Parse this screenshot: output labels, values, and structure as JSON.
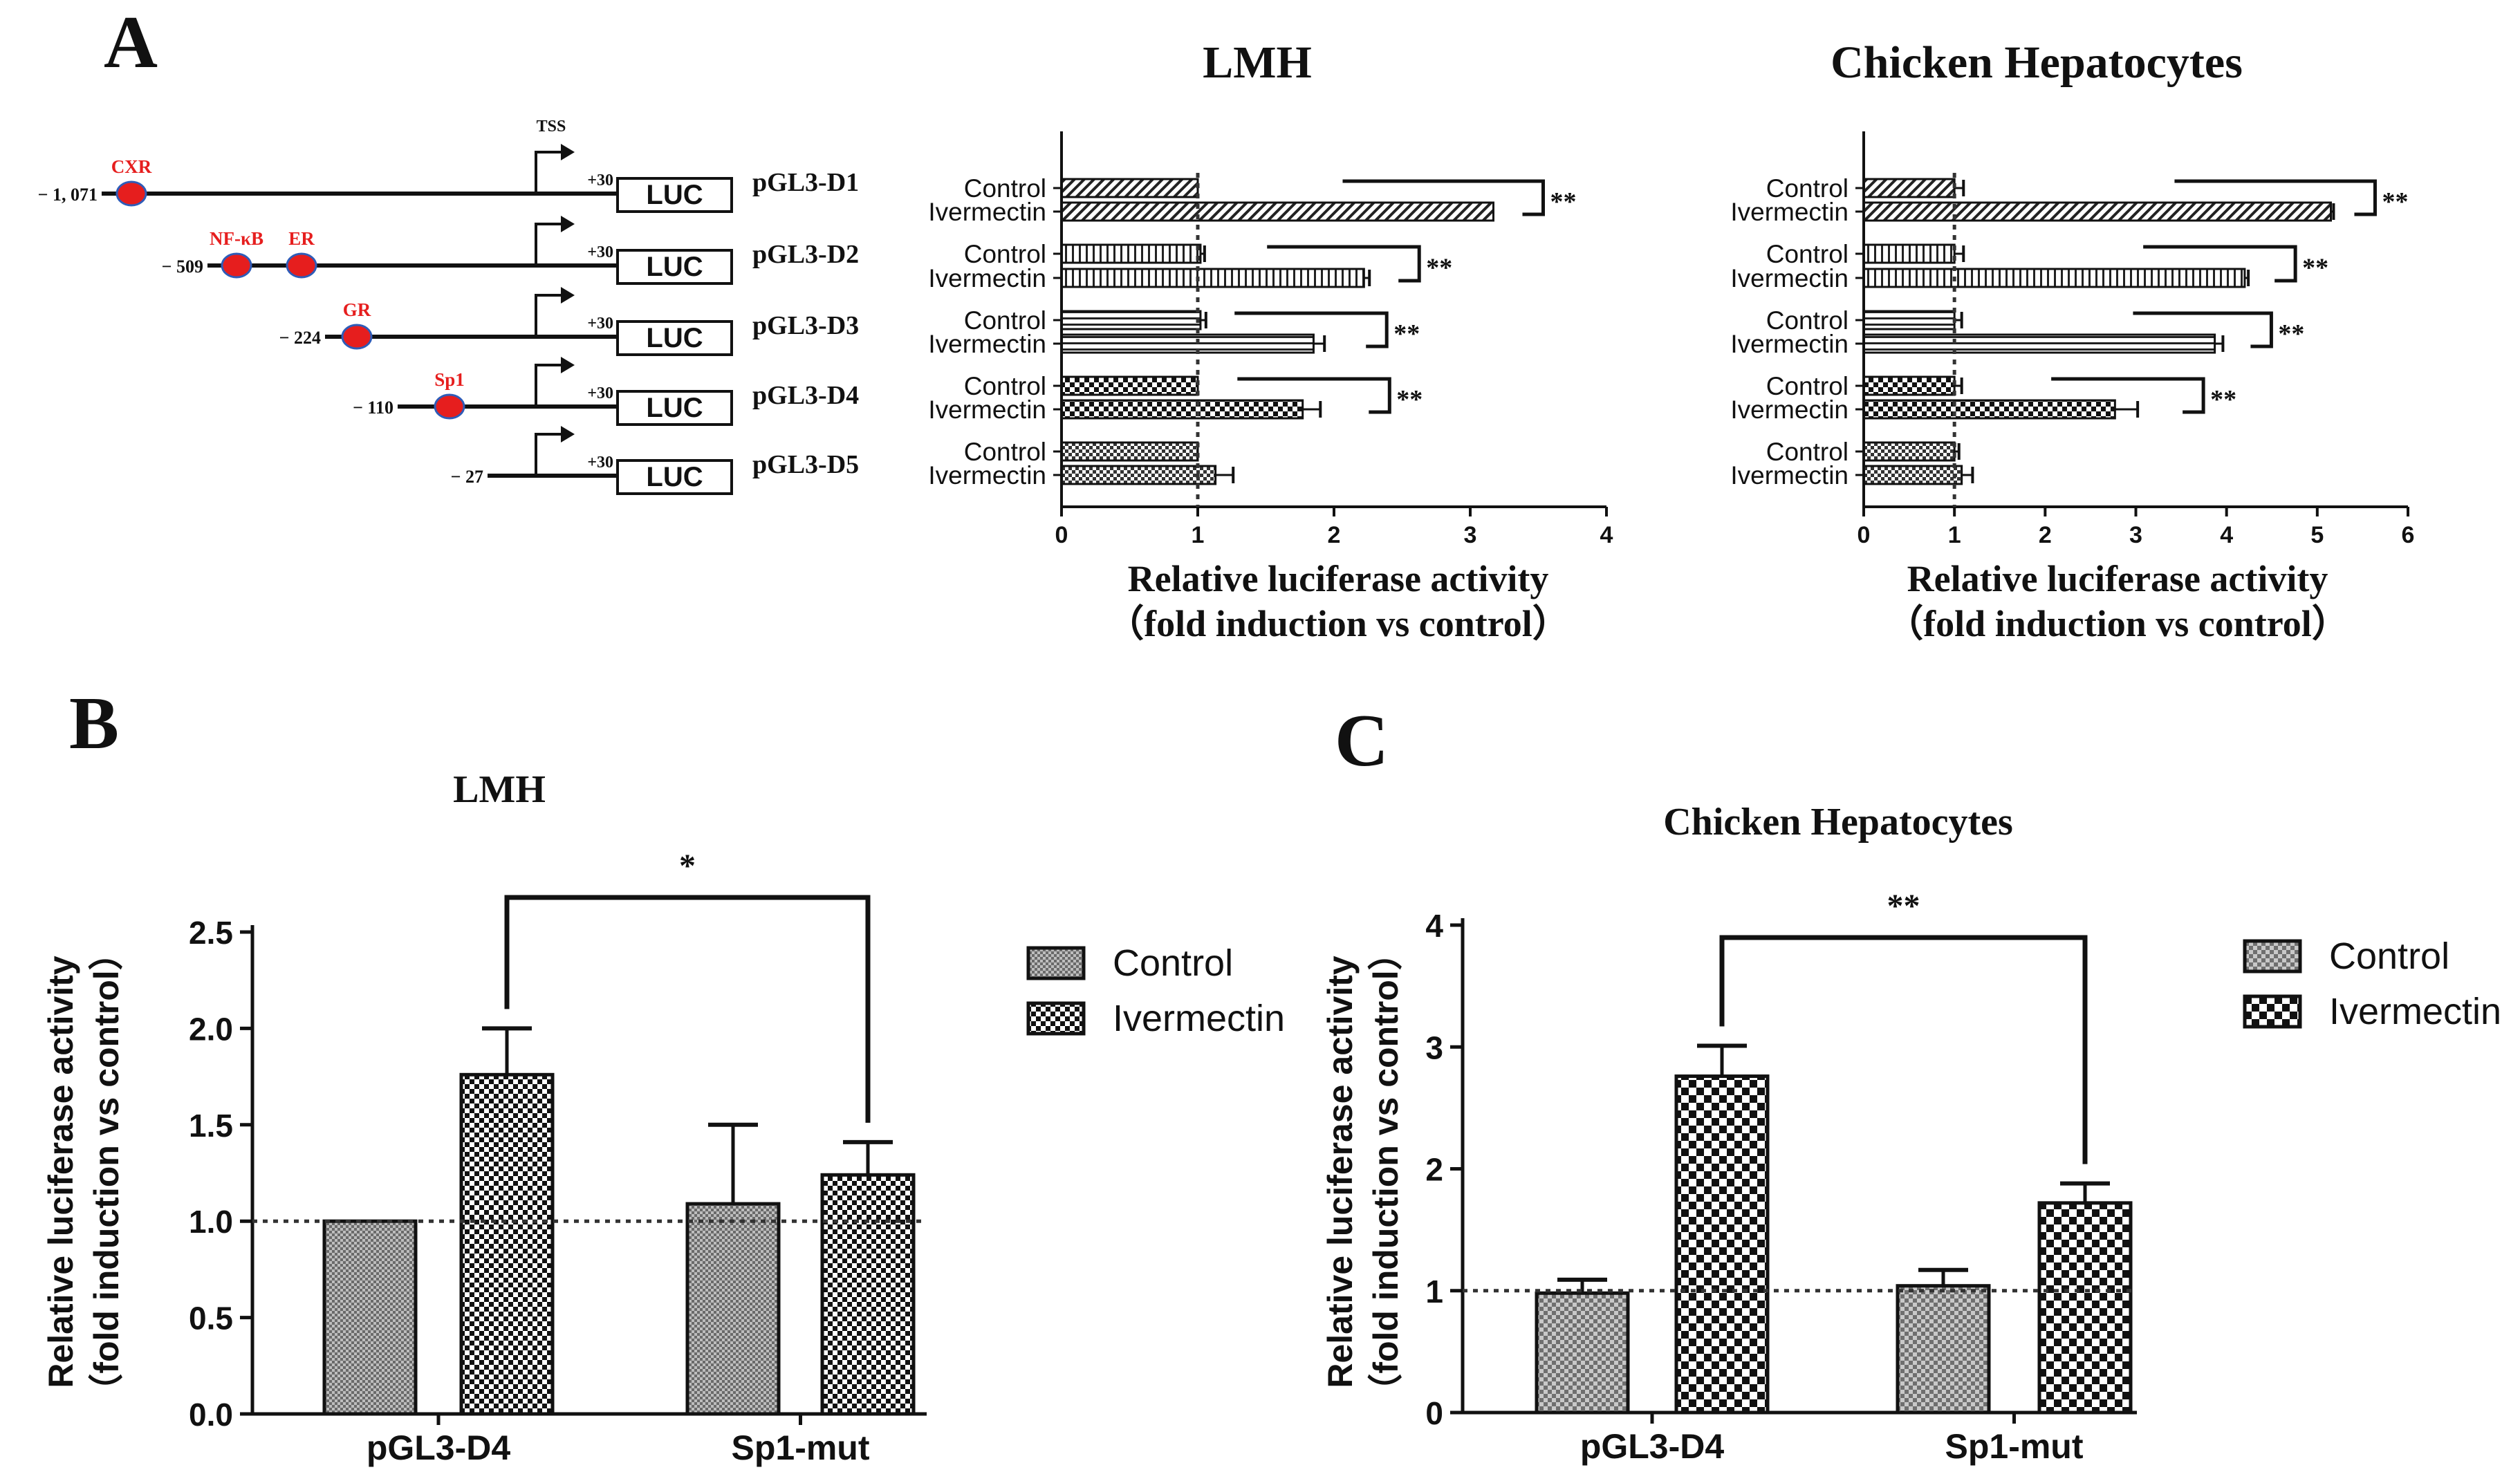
{
  "colors": {
    "ink": "#111111",
    "site": "#e61e1e",
    "site_edge": "#2e5cb8",
    "site_label": "#e61e1e",
    "bg": "#ffffff"
  },
  "panel_labels": {
    "a": "A",
    "b": "B",
    "c": "C"
  },
  "constructs": [
    {
      "name": "pGL3-D1",
      "start": "− 1, 071",
      "tss_label": "TSS",
      "end": "+30",
      "reporter": "LUC",
      "sites": [
        {
          "label": "CXR"
        }
      ]
    },
    {
      "name": "pGL3-D2",
      "start": "− 509",
      "end": "+30",
      "reporter": "LUC",
      "sites": [
        {
          "label": "NF-κB"
        },
        {
          "label": "ER"
        }
      ]
    },
    {
      "name": "pGL3-D3",
      "start": "− 224",
      "end": "+30",
      "reporter": "LUC",
      "sites": [
        {
          "label": "GR"
        }
      ]
    },
    {
      "name": "pGL3-D4",
      "start": "− 110",
      "end": "+30",
      "reporter": "LUC",
      "sites": [
        {
          "label": "Sp1"
        }
      ]
    },
    {
      "name": "pGL3-D5",
      "start": "− 27",
      "end": "+30",
      "reporter": "LUC",
      "sites": []
    }
  ],
  "chart_data": [
    {
      "id": "A-LMH",
      "type": "bar",
      "orientation": "horizontal",
      "title": "LMH",
      "xlabel": "Relative luciferase activity",
      "xlabel2": "（fold induction vs control）",
      "xlim": [
        0,
        4
      ],
      "xticks": [
        "0",
        "1",
        "2",
        "3",
        "4"
      ],
      "reference_line": 1,
      "groups": [
        {
          "construct": "pGL3-D1",
          "bars": [
            {
              "label": "Control",
              "value": 1.0,
              "error": 0.0
            },
            {
              "label": "Ivermectin",
              "value": 3.17,
              "error": 0.0
            }
          ],
          "significance": "**"
        },
        {
          "construct": "pGL3-D2",
          "bars": [
            {
              "label": "Control",
              "value": 1.02,
              "error": 0.03
            },
            {
              "label": "Ivermectin",
              "value": 2.22,
              "error": 0.04
            }
          ],
          "significance": "**"
        },
        {
          "construct": "pGL3-D3",
          "bars": [
            {
              "label": "Control",
              "value": 1.02,
              "error": 0.04
            },
            {
              "label": "Ivermectin",
              "value": 1.85,
              "error": 0.08
            }
          ],
          "significance": "**"
        },
        {
          "construct": "pGL3-D4",
          "bars": [
            {
              "label": "Control",
              "value": 1.0,
              "error": 0.0
            },
            {
              "label": "Ivermectin",
              "value": 1.77,
              "error": 0.13
            }
          ],
          "significance": "**"
        },
        {
          "construct": "pGL3-D5",
          "bars": [
            {
              "label": "Control",
              "value": 1.0,
              "error": 0.0
            },
            {
              "label": "Ivermectin",
              "value": 1.13,
              "error": 0.13
            }
          ],
          "significance": ""
        }
      ]
    },
    {
      "id": "A-CH",
      "type": "bar",
      "orientation": "horizontal",
      "title": "Chicken Hepatocytes",
      "xlabel": "Relative luciferase activity",
      "xlabel2": "（fold induction vs control）",
      "xlim": [
        0,
        6
      ],
      "xticks": [
        "0",
        "1",
        "2",
        "3",
        "4",
        "5",
        "6"
      ],
      "reference_line": 1,
      "groups": [
        {
          "construct": "pGL3-D1",
          "bars": [
            {
              "label": "Control",
              "value": 1.0,
              "error": 0.1
            },
            {
              "label": "Ivermectin",
              "value": 5.15,
              "error": 0.03
            }
          ],
          "significance": "**"
        },
        {
          "construct": "pGL3-D2",
          "bars": [
            {
              "label": "Control",
              "value": 1.0,
              "error": 0.1
            },
            {
              "label": "Ivermectin",
              "value": 4.2,
              "error": 0.04
            }
          ],
          "significance": "**"
        },
        {
          "construct": "pGL3-D3",
          "bars": [
            {
              "label": "Control",
              "value": 1.0,
              "error": 0.08
            },
            {
              "label": "Ivermectin",
              "value": 3.87,
              "error": 0.09
            }
          ],
          "significance": "**"
        },
        {
          "construct": "pGL3-D4",
          "bars": [
            {
              "label": "Control",
              "value": 1.0,
              "error": 0.08
            },
            {
              "label": "Ivermectin",
              "value": 2.77,
              "error": 0.25
            }
          ],
          "significance": "**"
        },
        {
          "construct": "pGL3-D5",
          "bars": [
            {
              "label": "Control",
              "value": 1.0,
              "error": 0.05
            },
            {
              "label": "Ivermectin",
              "value": 1.08,
              "error": 0.12
            }
          ],
          "significance": ""
        }
      ]
    },
    {
      "id": "B",
      "type": "bar",
      "orientation": "vertical",
      "title": "LMH",
      "ylabel": "Relative luciferase activity",
      "ylabel2": "（fold induction vs control）",
      "ylim": [
        0,
        2.5
      ],
      "yticks": [
        "0.0",
        "0.5",
        "1.0",
        "1.5",
        "2.0",
        "2.5"
      ],
      "reference_line": 1,
      "categories": [
        "pGL3-D4",
        "Sp1-mut"
      ],
      "series": [
        {
          "name": "Control",
          "values": [
            1.0,
            1.09
          ],
          "errors": [
            0.0,
            0.41
          ]
        },
        {
          "name": "Ivermectin",
          "values": [
            1.76,
            1.24
          ],
          "errors": [
            0.24,
            0.17
          ]
        }
      ],
      "significance": "*"
    },
    {
      "id": "C",
      "type": "bar",
      "orientation": "vertical",
      "title": "Chicken Hepatocytes",
      "ylabel": "Relative luciferase activity",
      "ylabel2": "（fold induction vs control）",
      "ylim": [
        0,
        4
      ],
      "yticks": [
        "0",
        "1",
        "2",
        "3",
        "4"
      ],
      "reference_line": 1,
      "categories": [
        "pGL3-D4",
        "Sp1-mut"
      ],
      "series": [
        {
          "name": "Control",
          "values": [
            0.98,
            1.04
          ],
          "errors": [
            0.11,
            0.13
          ]
        },
        {
          "name": "Ivermectin",
          "values": [
            2.76,
            1.72
          ],
          "errors": [
            0.25,
            0.16
          ]
        }
      ],
      "significance": "**"
    }
  ]
}
